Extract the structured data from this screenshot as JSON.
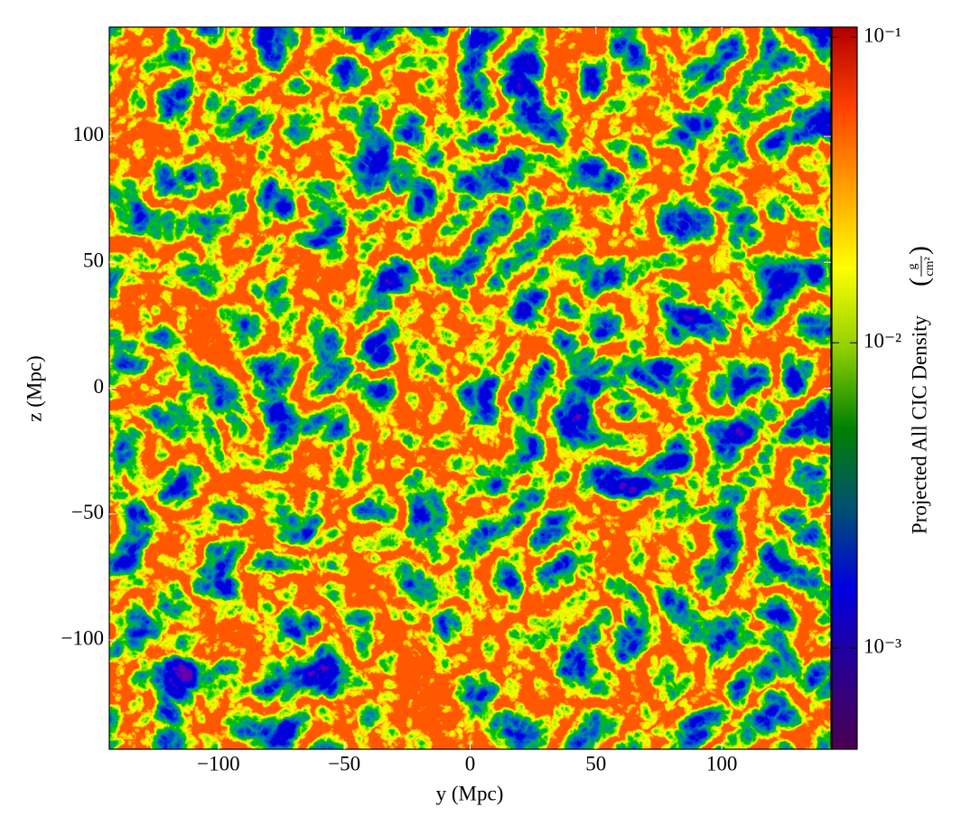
{
  "chart_data": {
    "type": "image",
    "xlabel": "y  (Mpc)",
    "ylabel": "z  (Mpc)",
    "xlim": [
      -143.4,
      143.4
    ],
    "ylim": [
      -143.4,
      143.4
    ],
    "xticks": [
      {
        "value": -100,
        "label": "−100"
      },
      {
        "value": -50,
        "label": "−50"
      },
      0,
      50,
      100
    ],
    "yticks": [
      {
        "value": -100,
        "label": "−100"
      },
      {
        "value": -50,
        "label": "−50"
      },
      0,
      50,
      100
    ],
    "colorbar_label": "Projected All CIC Density",
    "colorbar_units": {
      "numerator": "g",
      "denominator": "cm²"
    },
    "clim": [
      0.000467,
      0.108
    ],
    "color_log_scale": true,
    "cticks": [
      {
        "value": 0.001,
        "label": "10⁻³"
      },
      {
        "value": 0.01,
        "label": "10⁻²"
      },
      {
        "value": 0.1,
        "label": "10⁻¹"
      }
    ],
    "colormap": [
      "#4a0050",
      "#2a0090",
      "#0000e0",
      "#005070",
      "#008000",
      "#90d000",
      "#ffff00",
      "#ffa000",
      "#ff4000",
      "#b00000"
    ]
  }
}
